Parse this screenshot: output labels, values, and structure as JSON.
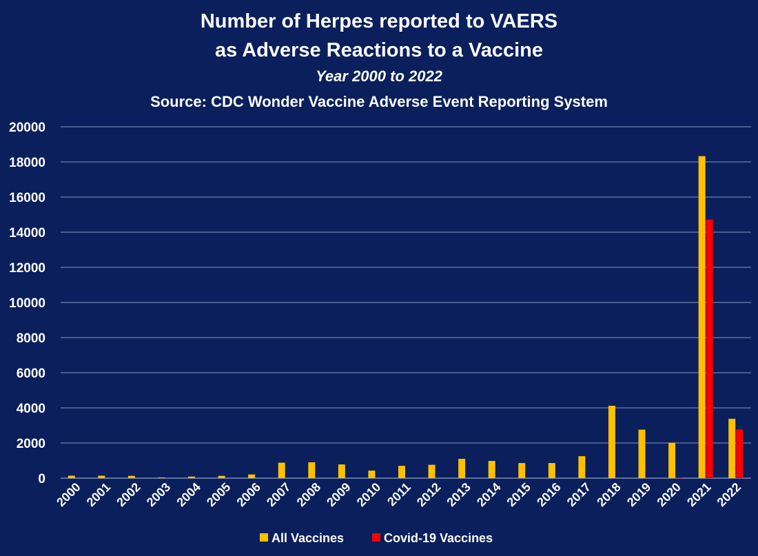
{
  "chart_data": {
    "type": "bar",
    "title": "Number of Herpes reported to VAERS",
    "title_line2": "as Adverse Reactions to a Vaccine",
    "subtitle": "Year 2000 to 2022",
    "source": "Source: CDC Wonder Vaccine Adverse Event Reporting System",
    "xlabel": "",
    "ylabel": "",
    "ylim": [
      0,
      20000
    ],
    "yticks": [
      "0",
      "2000",
      "4000",
      "6000",
      "8000",
      "10000",
      "12000",
      "14000",
      "16000",
      "18000",
      "20000"
    ],
    "grid": true,
    "legend_position": "bottom",
    "categories": [
      "2000",
      "2001",
      "2002",
      "2003",
      "2004",
      "2005",
      "2006",
      "2007",
      "2008",
      "2009",
      "2010",
      "2011",
      "2012",
      "2013",
      "2014",
      "2015",
      "2016",
      "2017",
      "2018",
      "2019",
      "2020",
      "2021",
      "2022"
    ],
    "series": [
      {
        "name": "All Vaccines",
        "color": "#ffc000",
        "values": [
          140,
          140,
          130,
          40,
          90,
          130,
          210,
          880,
          900,
          780,
          430,
          700,
          760,
          1100,
          980,
          860,
          860,
          1250,
          4120,
          2760,
          2020,
          18330,
          3380
        ]
      },
      {
        "name": "Covid-19 Vaccines",
        "color": "#ff0000",
        "values": [
          0,
          0,
          0,
          0,
          0,
          0,
          0,
          0,
          0,
          0,
          0,
          0,
          0,
          0,
          0,
          0,
          0,
          0,
          0,
          0,
          40,
          14720,
          2780
        ]
      }
    ]
  },
  "colors": {
    "background": "#0a1f5c",
    "gridline": "#8a98c0",
    "text": "#ffffff"
  }
}
